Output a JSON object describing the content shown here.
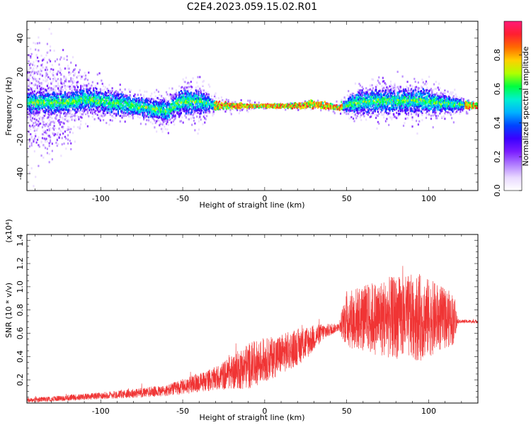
{
  "figure": {
    "title": "C2E4.2023.059.15.02.R01"
  },
  "chart_data": [
    {
      "type": "heatmap",
      "panel": "top",
      "xlabel": "Height of straight line (km)",
      "ylabel": "Frequency (Hz)",
      "xlim": [
        -145,
        130
      ],
      "ylim": [
        -50,
        50
      ],
      "xticks": [
        -100,
        -50,
        0,
        50,
        100
      ],
      "yticks": [
        -40,
        -20,
        0,
        20,
        40
      ],
      "colorbar": {
        "label": "Normalized spectral amplitude",
        "range": [
          0,
          1
        ],
        "ticks": [
          0.0,
          0.2,
          0.4,
          0.6,
          0.8
        ],
        "colors": [
          "#ffffff",
          "#e9d9ff",
          "#b07cff",
          "#7a1cff",
          "#3a00ff",
          "#0044ff",
          "#00b2ff",
          "#00f0d0",
          "#00ff40",
          "#b0ff00",
          "#ffd000",
          "#ff6a00",
          "#ff1f30",
          "#ff1a78"
        ]
      },
      "band_profile": [
        {
          "x": -145,
          "center": 2,
          "width": 10,
          "scatter": 45
        },
        {
          "x": -120,
          "center": 2,
          "width": 10,
          "scatter": 30
        },
        {
          "x": -110,
          "center": 4,
          "width": 11,
          "scatter": 18
        },
        {
          "x": -80,
          "center": 0,
          "width": 9,
          "scatter": 10
        },
        {
          "x": -60,
          "center": -3,
          "width": 9,
          "scatter": 14
        },
        {
          "x": -50,
          "center": 3,
          "width": 12,
          "scatter": 16
        },
        {
          "x": -38,
          "center": 2,
          "width": 10,
          "scatter": 18
        },
        {
          "x": -30,
          "center": 0,
          "width": 3,
          "scatter": 6
        },
        {
          "x": -10,
          "center": 0,
          "width": 1.5,
          "scatter": 4
        },
        {
          "x": 0,
          "center": 0,
          "width": 1.5,
          "scatter": 2
        },
        {
          "x": 20,
          "center": 0,
          "width": 2,
          "scatter": 3
        },
        {
          "x": 28,
          "center": 1,
          "width": 3,
          "scatter": 4
        },
        {
          "x": 45,
          "center": -1,
          "width": 2,
          "scatter": 4
        },
        {
          "x": 55,
          "center": 2,
          "width": 10,
          "scatter": 14
        },
        {
          "x": 75,
          "center": 3,
          "width": 11,
          "scatter": 16
        },
        {
          "x": 95,
          "center": 3,
          "width": 11,
          "scatter": 16
        },
        {
          "x": 115,
          "center": 1,
          "width": 6,
          "scatter": 10
        },
        {
          "x": 130,
          "center": 0,
          "width": 1.5,
          "scatter": 2
        }
      ]
    },
    {
      "type": "line",
      "panel": "bottom",
      "xlabel": "Height of straight line (km)",
      "ylabel": "SNR (10 * v/v)",
      "y_multiplier": "(x10⁴)",
      "xlim": [
        -145,
        130
      ],
      "ylim": [
        0,
        1.45
      ],
      "xticks": [
        -100,
        -50,
        0,
        50,
        100
      ],
      "yticks": [
        0.2,
        0.4,
        0.6,
        0.8,
        1.0,
        1.2,
        1.4
      ],
      "series": [
        {
          "color": "#f03434",
          "envelope": [
            {
              "x": -145,
              "base": 0.02,
              "spread": 0.04
            },
            {
              "x": -100,
              "base": 0.06,
              "spread": 0.06
            },
            {
              "x": -60,
              "base": 0.1,
              "spread": 0.1
            },
            {
              "x": -30,
              "base": 0.2,
              "spread": 0.2
            },
            {
              "x": -10,
              "base": 0.3,
              "spread": 0.4
            },
            {
              "x": 10,
              "base": 0.4,
              "spread": 0.35
            },
            {
              "x": 25,
              "base": 0.5,
              "spread": 0.3
            },
            {
              "x": 35,
              "base": 0.6,
              "spread": 0.15
            },
            {
              "x": 45,
              "base": 0.65,
              "spread": 0.06
            },
            {
              "x": 50,
              "base": 0.7,
              "spread": 0.5
            },
            {
              "x": 75,
              "base": 0.7,
              "spread": 0.7
            },
            {
              "x": 95,
              "base": 0.7,
              "spread": 0.75
            },
            {
              "x": 115,
              "base": 0.7,
              "spread": 0.45
            },
            {
              "x": 118,
              "base": 0.7,
              "spread": 0.03
            },
            {
              "x": 130,
              "base": 0.7,
              "spread": 0.03
            }
          ]
        }
      ]
    }
  ]
}
